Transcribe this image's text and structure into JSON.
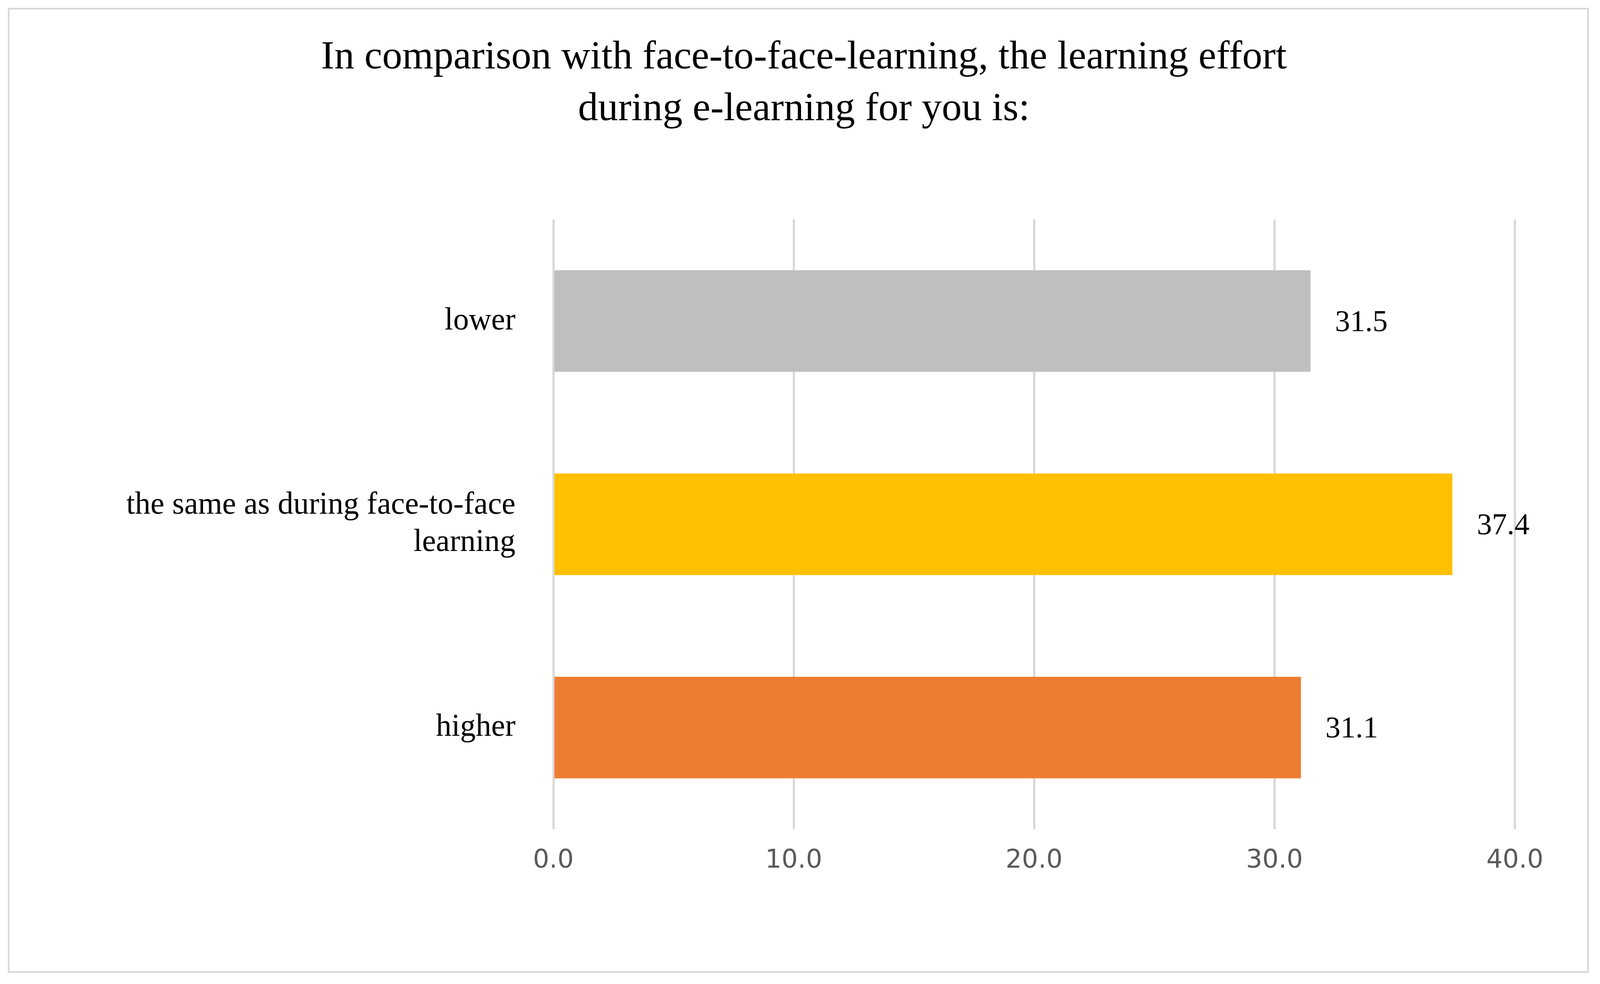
{
  "chart_data": {
    "type": "bar",
    "orientation": "horizontal",
    "title": [
      "In comparison with face-to-face-learning, the learning effort",
      "during e-learning for you is:"
    ],
    "categories": [
      "lower",
      "the same as during face-to-face learning",
      "higher"
    ],
    "values": [
      31.5,
      37.4,
      31.1
    ],
    "colors": [
      "#bfbfbf",
      "#ffc000",
      "#ed7d31"
    ],
    "xlim": [
      0,
      40
    ],
    "xticks": [
      {
        "value": 0,
        "label": "0.0"
      },
      {
        "value": 10,
        "label": "10.0"
      },
      {
        "value": 20,
        "label": "20.0"
      },
      {
        "value": 30,
        "label": "30.0"
      },
      {
        "value": 40,
        "label": "40.0"
      }
    ],
    "grid": true,
    "data_labels": true
  }
}
